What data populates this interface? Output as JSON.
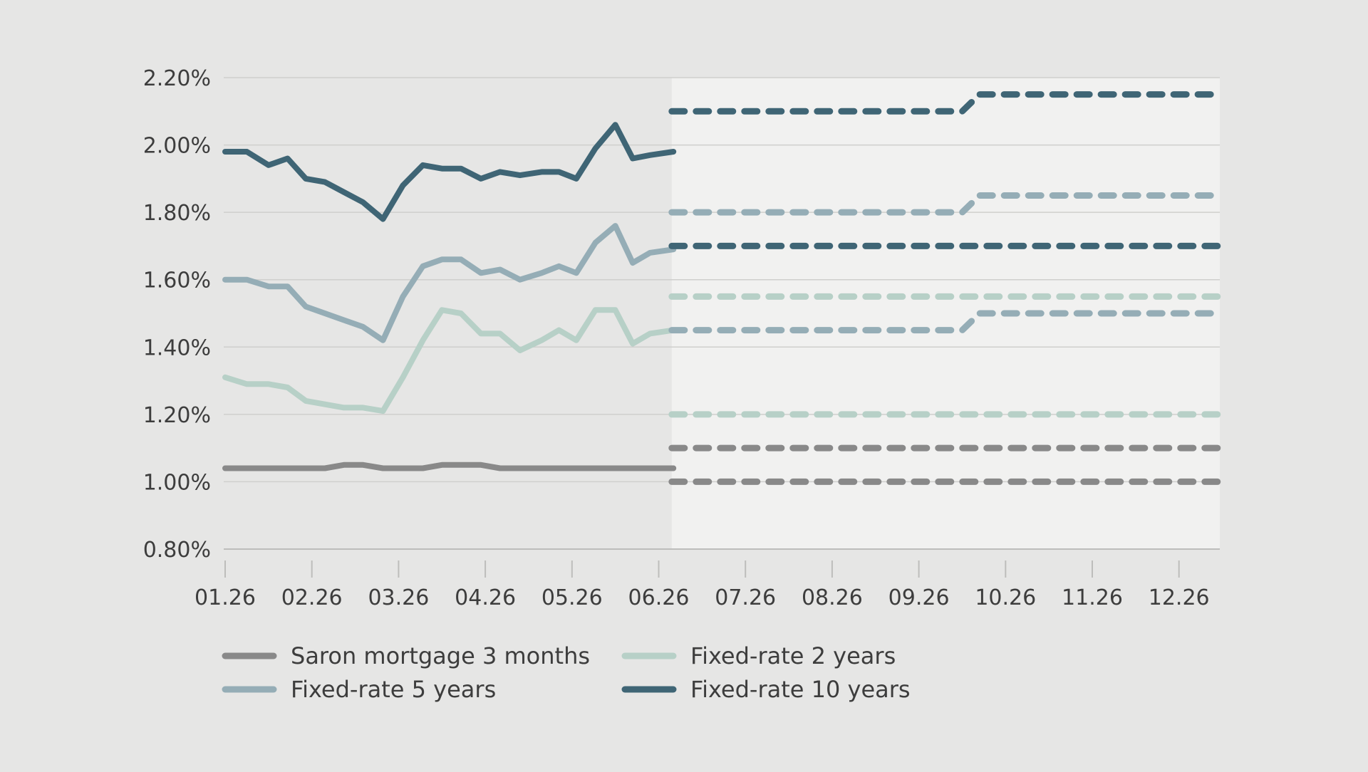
{
  "chart_data": {
    "type": "line",
    "x_tick_labels": [
      "01.26",
      "02.26",
      "03.26",
      "04.26",
      "05.26",
      "06.26",
      "07.26",
      "08.26",
      "09.26",
      "10.26",
      "11.26",
      "12.26"
    ],
    "y_tick_labels": [
      "0.80%",
      "1.00%",
      "1.20%",
      "1.40%",
      "1.60%",
      "1.80%",
      "2.00%",
      "2.20%"
    ],
    "ylim": [
      0.8,
      2.2
    ],
    "xlim": [
      0,
      11.46
    ],
    "forecast_start": 5.15,
    "grid": "horizontal",
    "legend_position": "bottom",
    "series": [
      {
        "name": "Saron mortgage 3 months",
        "color": "#898989",
        "points": [
          [
            0.0,
            1.04
          ],
          [
            0.2,
            1.04
          ],
          [
            0.45,
            1.04
          ],
          [
            0.7,
            1.04
          ],
          [
            0.93,
            1.04
          ],
          [
            1.15,
            1.04
          ],
          [
            1.37,
            1.05
          ],
          [
            1.59,
            1.05
          ],
          [
            1.82,
            1.04
          ],
          [
            2.05,
            1.04
          ],
          [
            2.28,
            1.04
          ],
          [
            2.5,
            1.05
          ],
          [
            2.72,
            1.05
          ],
          [
            2.95,
            1.05
          ],
          [
            3.17,
            1.04
          ],
          [
            3.4,
            1.04
          ],
          [
            3.65,
            1.04
          ],
          [
            3.9,
            1.04
          ],
          [
            4.15,
            1.04
          ],
          [
            4.4,
            1.04
          ],
          [
            4.65,
            1.04
          ],
          [
            4.9,
            1.04
          ],
          [
            5.17,
            1.04
          ]
        ],
        "forecast": [
          [
            [
              5.15,
              1.1
            ],
            [
              11.46,
              1.1
            ]
          ],
          [
            [
              5.15,
              1.0
            ],
            [
              11.46,
              1.0
            ]
          ]
        ]
      },
      {
        "name": "Fixed-rate 2 years",
        "color": "#b7d0c7",
        "points": [
          [
            0.0,
            1.31
          ],
          [
            0.25,
            1.29
          ],
          [
            0.5,
            1.29
          ],
          [
            0.72,
            1.28
          ],
          [
            0.93,
            1.24
          ],
          [
            1.15,
            1.23
          ],
          [
            1.37,
            1.22
          ],
          [
            1.59,
            1.22
          ],
          [
            1.82,
            1.21
          ],
          [
            2.05,
            1.31
          ],
          [
            2.28,
            1.42
          ],
          [
            2.5,
            1.51
          ],
          [
            2.72,
            1.5
          ],
          [
            2.95,
            1.44
          ],
          [
            3.17,
            1.44
          ],
          [
            3.4,
            1.39
          ],
          [
            3.65,
            1.42
          ],
          [
            3.85,
            1.45
          ],
          [
            4.05,
            1.42
          ],
          [
            4.27,
            1.51
          ],
          [
            4.5,
            1.51
          ],
          [
            4.7,
            1.41
          ],
          [
            4.9,
            1.44
          ],
          [
            5.17,
            1.45
          ]
        ],
        "forecast": [
          [
            [
              5.15,
              1.55
            ],
            [
              11.46,
              1.55
            ]
          ],
          [
            [
              5.15,
              1.2
            ],
            [
              11.46,
              1.2
            ]
          ]
        ]
      },
      {
        "name": "Fixed-rate 5 years",
        "color": "#95adb6",
        "points": [
          [
            0.0,
            1.6
          ],
          [
            0.25,
            1.6
          ],
          [
            0.5,
            1.58
          ],
          [
            0.72,
            1.58
          ],
          [
            0.93,
            1.52
          ],
          [
            1.15,
            1.5
          ],
          [
            1.37,
            1.48
          ],
          [
            1.59,
            1.46
          ],
          [
            1.82,
            1.42
          ],
          [
            2.05,
            1.55
          ],
          [
            2.28,
            1.64
          ],
          [
            2.5,
            1.66
          ],
          [
            2.72,
            1.66
          ],
          [
            2.95,
            1.62
          ],
          [
            3.17,
            1.63
          ],
          [
            3.4,
            1.6
          ],
          [
            3.65,
            1.62
          ],
          [
            3.85,
            1.64
          ],
          [
            4.05,
            1.62
          ],
          [
            4.27,
            1.71
          ],
          [
            4.5,
            1.76
          ],
          [
            4.7,
            1.65
          ],
          [
            4.9,
            1.68
          ],
          [
            5.17,
            1.69
          ]
        ],
        "forecast": [
          [
            [
              5.15,
              1.8
            ],
            [
              8.5,
              1.8
            ],
            [
              8.7,
              1.85
            ],
            [
              11.46,
              1.85
            ]
          ],
          [
            [
              5.15,
              1.45
            ],
            [
              8.5,
              1.45
            ],
            [
              8.7,
              1.5
            ],
            [
              11.46,
              1.5
            ]
          ]
        ]
      },
      {
        "name": "Fixed-rate 10 years",
        "color": "#3f6575",
        "points": [
          [
            0.0,
            1.98
          ],
          [
            0.25,
            1.98
          ],
          [
            0.5,
            1.94
          ],
          [
            0.72,
            1.96
          ],
          [
            0.93,
            1.9
          ],
          [
            1.15,
            1.89
          ],
          [
            1.37,
            1.86
          ],
          [
            1.59,
            1.83
          ],
          [
            1.82,
            1.78
          ],
          [
            2.05,
            1.88
          ],
          [
            2.28,
            1.94
          ],
          [
            2.5,
            1.93
          ],
          [
            2.72,
            1.93
          ],
          [
            2.95,
            1.9
          ],
          [
            3.17,
            1.92
          ],
          [
            3.4,
            1.91
          ],
          [
            3.65,
            1.92
          ],
          [
            3.85,
            1.92
          ],
          [
            4.05,
            1.9
          ],
          [
            4.27,
            1.99
          ],
          [
            4.5,
            2.06
          ],
          [
            4.7,
            1.96
          ],
          [
            4.9,
            1.97
          ],
          [
            5.17,
            1.98
          ]
        ],
        "forecast": [
          [
            [
              5.15,
              2.1
            ],
            [
              8.5,
              2.1
            ],
            [
              8.7,
              2.15
            ],
            [
              11.46,
              2.15
            ]
          ],
          [
            [
              5.15,
              1.7
            ],
            [
              11.46,
              1.7
            ]
          ]
        ]
      }
    ]
  },
  "legend": {
    "items": [
      {
        "label": "Saron mortgage 3 months",
        "color": "#898989"
      },
      {
        "label": "Fixed-rate 2 years",
        "color": "#b7d0c7"
      },
      {
        "label": "Fixed-rate 5 years",
        "color": "#95adb6"
      },
      {
        "label": "Fixed-rate 10 years",
        "color": "#3f6575"
      }
    ]
  },
  "colors": {
    "background": "#e6e6e5",
    "forecast_band": "#f1f1f0",
    "grid": "#cfcfcd",
    "axis": "#bdbdbb",
    "text": "#3d3d3d"
  }
}
